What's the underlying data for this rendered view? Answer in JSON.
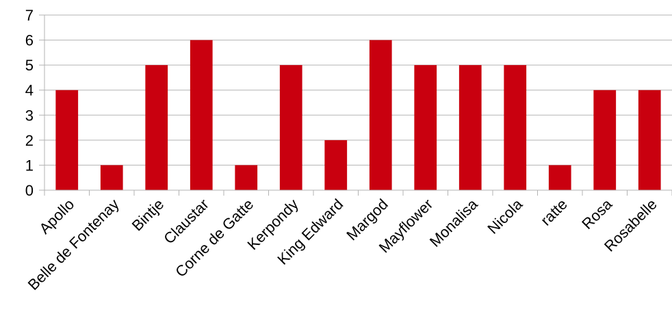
{
  "chart_data": {
    "type": "bar",
    "title": "",
    "xlabel": "",
    "ylabel": "",
    "categories": [
      "Apollo",
      "Belle de Fontenay",
      "Bintje",
      "Claustar",
      "Corne de Gatte",
      "Kerpondy",
      "King Edward",
      "Margod",
      "Mayflower",
      "Monalisa",
      "Nicola",
      "ratte",
      "Rosa",
      "Rosabelle"
    ],
    "values": [
      4,
      1,
      5,
      6,
      1,
      5,
      2,
      6,
      5,
      5,
      5,
      1,
      4,
      4
    ],
    "ylim": [
      0,
      7
    ],
    "yticks": [
      "0",
      "1",
      "2",
      "3",
      "4",
      "5",
      "6",
      "7"
    ],
    "grid": true,
    "legend": "none",
    "bar_color": "#c9000f",
    "grid_color": "#b3b3b3"
  }
}
